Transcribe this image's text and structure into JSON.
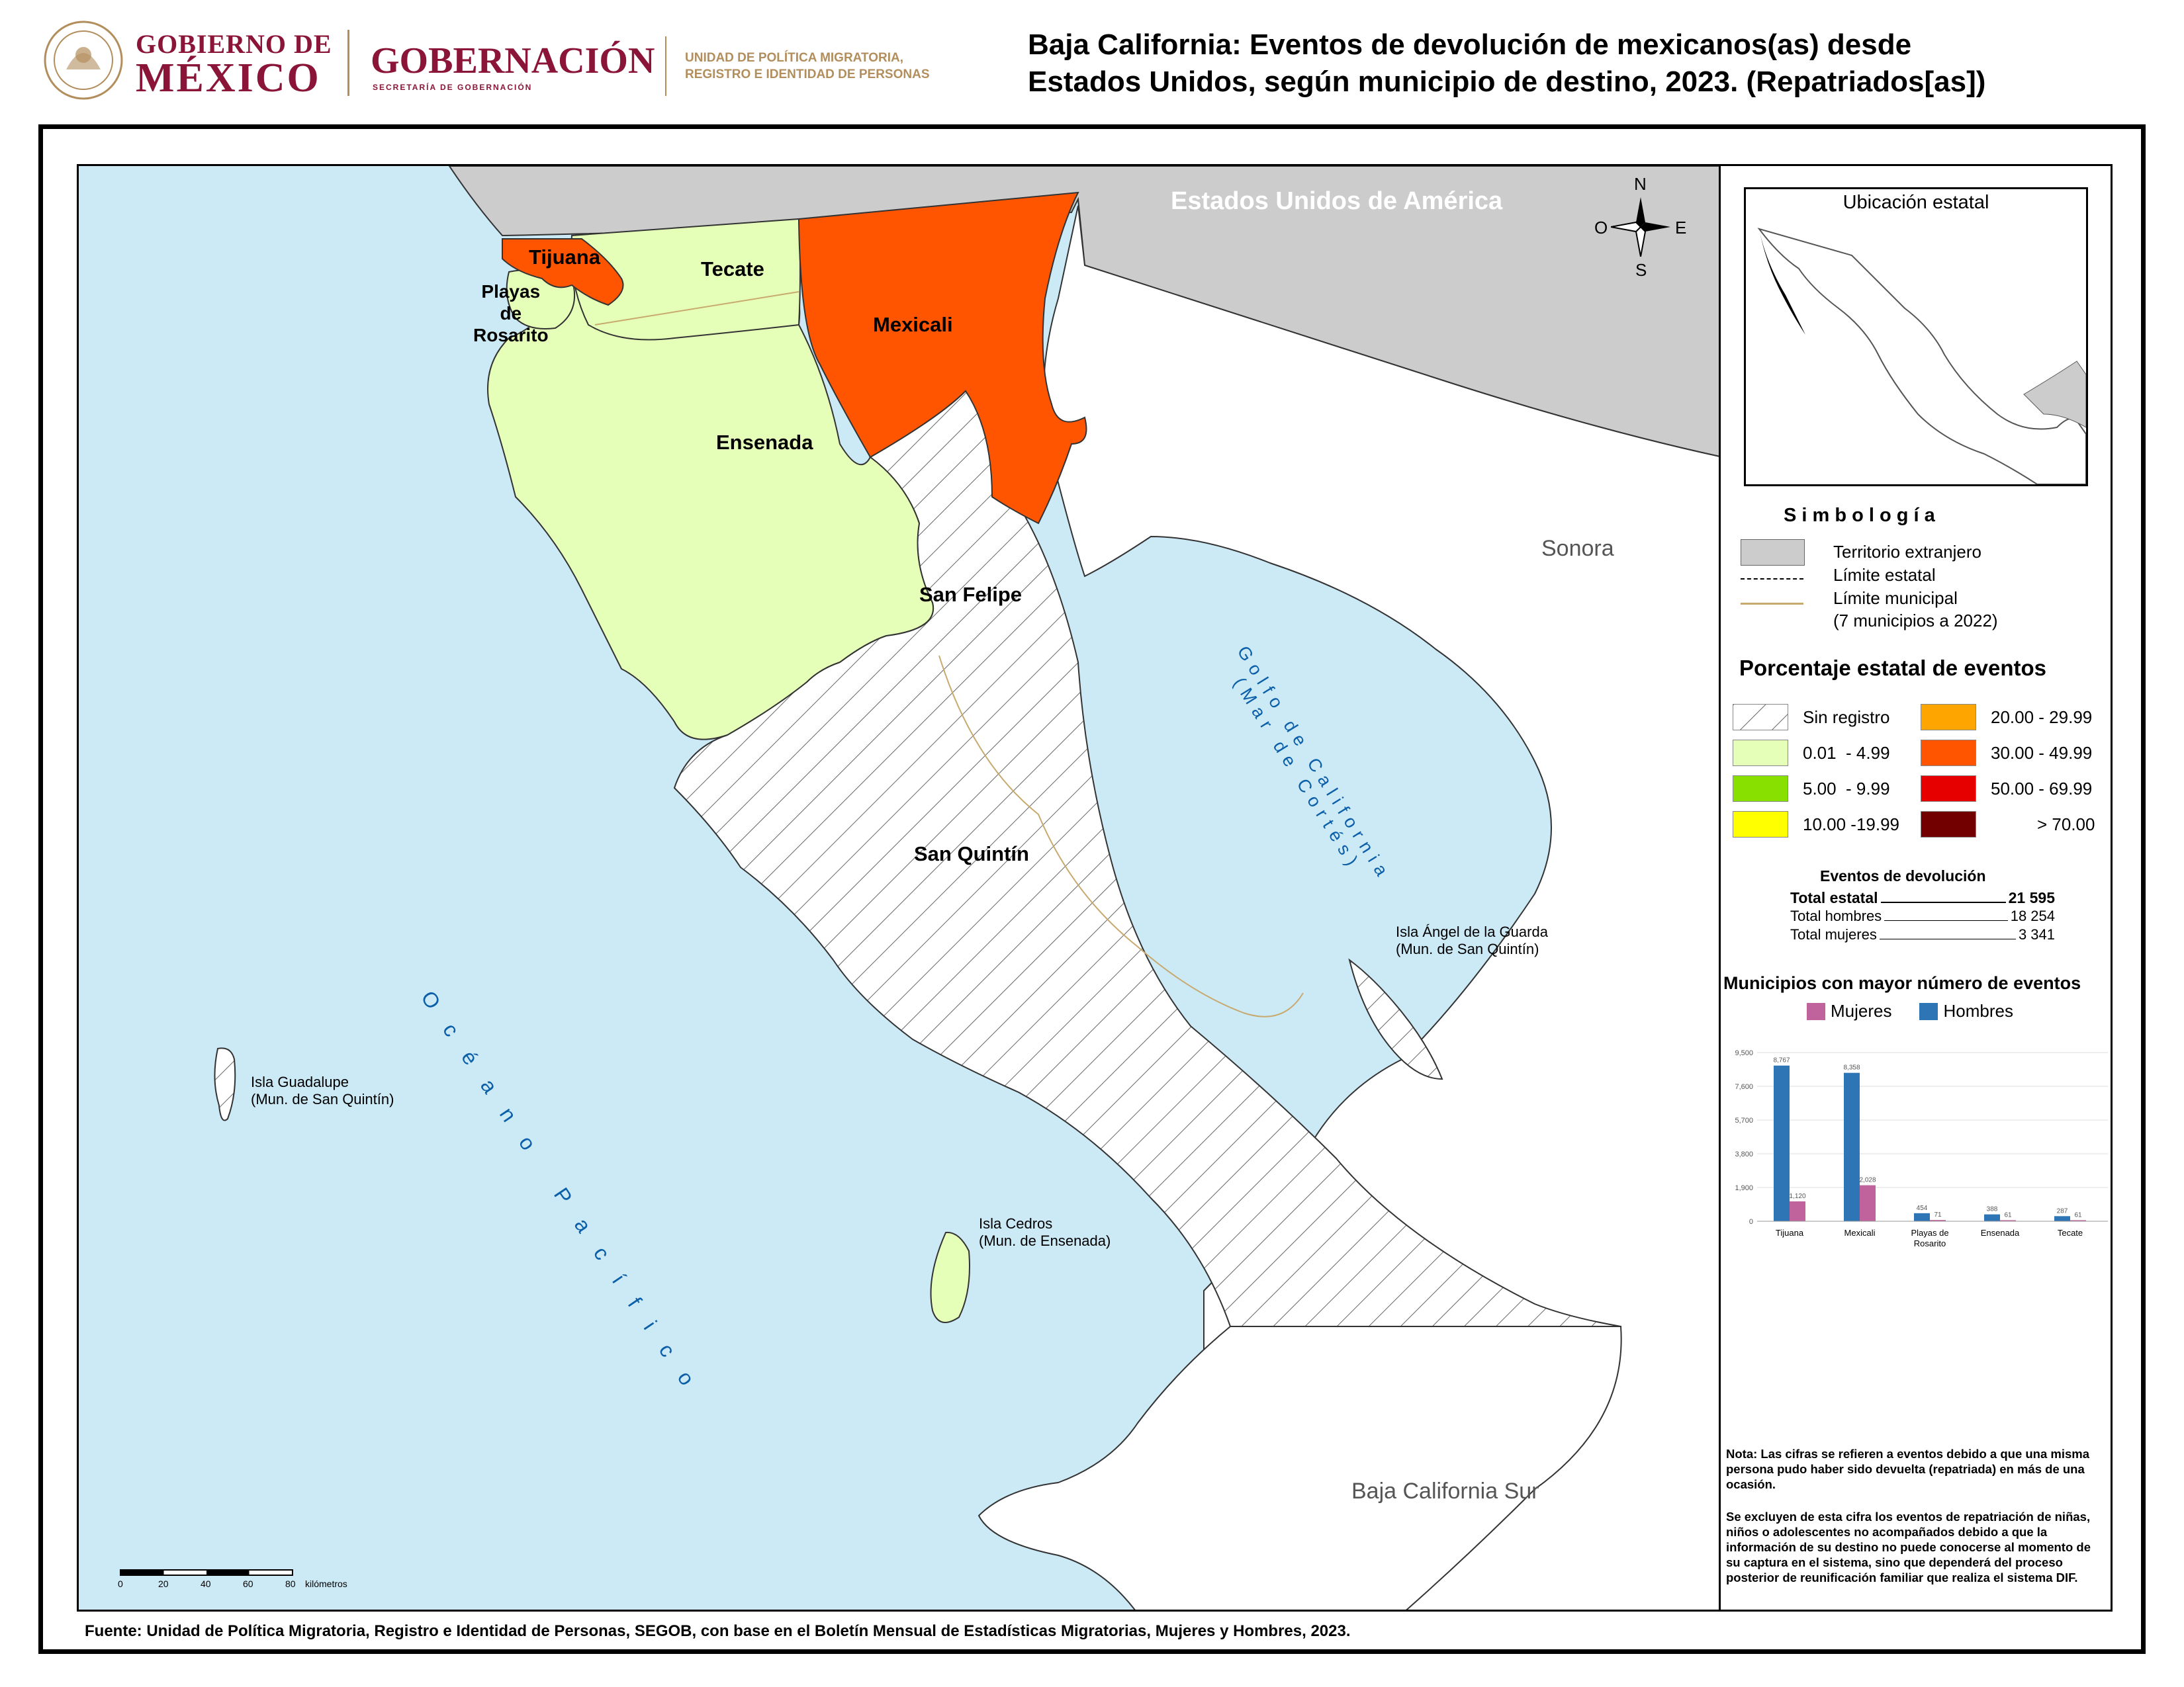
{
  "header": {
    "gobierno_de": "GOBIERNO DE",
    "mexico": "MÉXICO",
    "gobernacion": "GOBERNACIÓN",
    "secretaria": "SECRETARÍA DE GOBERNACIÓN",
    "unidad_line1": "UNIDAD DE POLÍTICA MIGRATORIA,",
    "unidad_line2": "REGISTRO E IDENTIDAD DE PERSONAS"
  },
  "title": {
    "line1": "Baja California: Eventos de devolución de mexicanos(as) desde",
    "line2": "Estados Unidos, según municipio de destino, 2023. (Repatriados[as])"
  },
  "map": {
    "labels": {
      "usa": "Estados Unidos de América",
      "sonora": "Sonora",
      "bcs": "Baja California Sur",
      "tijuana": "Tijuana",
      "tecate": "Tecate",
      "playas1": "Playas",
      "playas2": "de",
      "playas3": "Rosarito",
      "mexicali": "Mexicali",
      "ensenada": "Ensenada",
      "san_felipe": "San Felipe",
      "san_quintin": "San Quintín",
      "oceano": "Océano Pacífico",
      "golfo1": "Golfo de California",
      "golfo2": "(Mar de Cortés)",
      "isla_angel1": "Isla Ángel de la Guarda",
      "isla_angel2": "(Mun. de San Quintín)",
      "isla_guadalupe1": "Isla Guadalupe",
      "isla_guadalupe2": "(Mun. de San Quintín)",
      "isla_cedros1": "Isla Cedros",
      "isla_cedros2": "(Mun. de Ensenada)"
    },
    "compass": {
      "n": "N",
      "s": "S",
      "e": "E",
      "o": "O"
    },
    "scale": {
      "ticks": [
        "0",
        "20",
        "40",
        "60",
        "80"
      ],
      "unit": "kilómetros"
    },
    "colors": {
      "sea": "#cce9f6",
      "foreign": "#cccccc",
      "range_001_499": "#e5ffb8",
      "range_3000_4999": "#ff5500",
      "municipal_line": "#c8a96e"
    }
  },
  "inset": {
    "title": "Ubicación estatal"
  },
  "simbologia": {
    "title": "S i m b o l o g í a",
    "territorio": "Territorio extranjero",
    "limite_estatal": "Límite estatal",
    "limite_municipal": "Límite municipal",
    "municipios_note": "(7 municipios a 2022)"
  },
  "porcentaje": {
    "title": "Porcentaje estatal de eventos",
    "ranges": [
      {
        "label": "Sin registro",
        "color": "hatch"
      },
      {
        "label": "20.00 - 29.99",
        "color": "#ffa500"
      },
      {
        "label": "0.01  - 4.99",
        "color": "#e5ffb8"
      },
      {
        "label": "30.00 - 49.99",
        "color": "#ff5500"
      },
      {
        "label": "5.00  - 9.99",
        "color": "#88e000"
      },
      {
        "label": "50.00 - 69.99",
        "color": "#e60000"
      },
      {
        "label": "10.00 -19.99",
        "color": "#ffff00"
      },
      {
        "label": "> 70.00",
        "color": "#730000"
      }
    ]
  },
  "eventos": {
    "title": "Eventos de devolución",
    "total_label": "Total estatal",
    "total_value": "21 595",
    "hombres_label": "Total hombres",
    "hombres_value": "18 254",
    "mujeres_label": "Total mujeres",
    "mujeres_value": "3 341"
  },
  "chart_data": {
    "type": "bar",
    "title": "Municipios con mayor número de eventos",
    "categories": [
      "Tijuana",
      "Mexicali",
      "Playas de Rosarito",
      "Ensenada",
      "Tecate"
    ],
    "series": [
      {
        "name": "Hombres",
        "values": [
          8767,
          8358,
          454,
          388,
          287
        ],
        "color": "#2e75b6"
      },
      {
        "name": "Mujeres",
        "values": [
          1120,
          2028,
          71,
          61,
          61
        ],
        "color": "#c0629b"
      }
    ],
    "ylim": [
      0,
      9500
    ],
    "yticks": [
      "0",
      "1,900",
      "3,800",
      "5,700",
      "7,600",
      "9,500"
    ],
    "legend": "top"
  },
  "notes": {
    "nota1": "Nota: Las cifras se refieren a eventos debido a que una misma persona pudo haber sido devuelta (repatriada) en más de una ocasión.",
    "nota2": "Se excluyen de esta cifra los eventos de repatriación de niñas, niños o adolescentes no acompañados debido a que la información de su destino no puede conocerse al momento de su captura en el sistema, sino que dependerá del proceso posterior de reunificación familiar que realiza el sistema DIF."
  },
  "source": "Fuente: Unidad de Política Migratoria, Registro e Identidad de Personas, SEGOB, con base en el Boletín Mensual de Estadísticas Migratorias, Mujeres y Hombres, 2023."
}
